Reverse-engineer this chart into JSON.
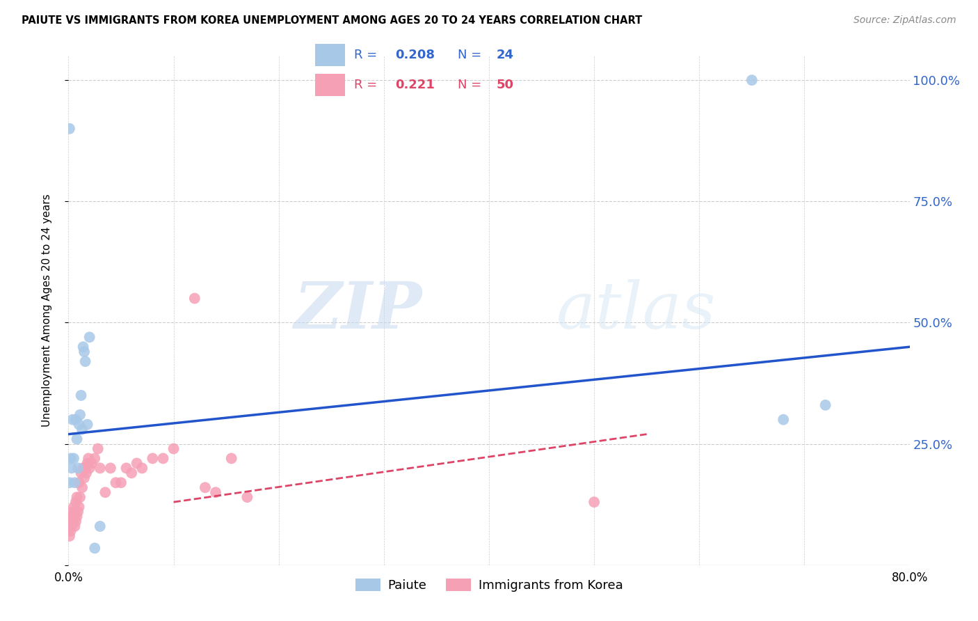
{
  "title": "PAIUTE VS IMMIGRANTS FROM KOREA UNEMPLOYMENT AMONG AGES 20 TO 24 YEARS CORRELATION CHART",
  "source": "Source: ZipAtlas.com",
  "ylabel": "Unemployment Among Ages 20 to 24 years",
  "y_ticks": [
    0.0,
    0.25,
    0.5,
    0.75,
    1.0
  ],
  "y_tick_labels": [
    "",
    "25.0%",
    "50.0%",
    "75.0%",
    "100.0%"
  ],
  "x_min": 0.0,
  "x_max": 0.8,
  "y_min": 0.0,
  "y_max": 1.05,
  "paiute_color": "#a8c8e8",
  "immigrants_color": "#f5a0b5",
  "paiute_line_color": "#2255cc",
  "immigrants_line_color": "#dd4466",
  "legend_R_paiute": "0.208",
  "legend_N_paiute": "24",
  "legend_R_immigrants": "0.221",
  "legend_N_immigrants": "50",
  "watermark_zip": "ZIP",
  "watermark_atlas": "atlas",
  "paiute_x": [
    0.001,
    0.001,
    0.002,
    0.003,
    0.004,
    0.005,
    0.006,
    0.007,
    0.008,
    0.009,
    0.01,
    0.011,
    0.012,
    0.013,
    0.014,
    0.015,
    0.016,
    0.018,
    0.02,
    0.025,
    0.03,
    0.65,
    0.68,
    0.72
  ],
  "paiute_y": [
    0.9,
    0.17,
    0.22,
    0.2,
    0.3,
    0.22,
    0.17,
    0.3,
    0.26,
    0.2,
    0.29,
    0.31,
    0.35,
    0.28,
    0.45,
    0.44,
    0.42,
    0.29,
    0.47,
    0.035,
    0.08,
    1.0,
    0.3,
    0.33
  ],
  "immigrants_x": [
    0.001,
    0.001,
    0.002,
    0.002,
    0.003,
    0.003,
    0.004,
    0.004,
    0.005,
    0.005,
    0.006,
    0.006,
    0.007,
    0.007,
    0.008,
    0.008,
    0.009,
    0.01,
    0.01,
    0.011,
    0.012,
    0.013,
    0.014,
    0.015,
    0.016,
    0.017,
    0.018,
    0.019,
    0.02,
    0.022,
    0.025,
    0.028,
    0.03,
    0.035,
    0.04,
    0.045,
    0.05,
    0.055,
    0.06,
    0.065,
    0.07,
    0.08,
    0.09,
    0.1,
    0.12,
    0.13,
    0.14,
    0.155,
    0.17,
    0.5
  ],
  "immigrants_y": [
    0.08,
    0.06,
    0.09,
    0.07,
    0.1,
    0.08,
    0.11,
    0.09,
    0.1,
    0.12,
    0.11,
    0.08,
    0.09,
    0.13,
    0.1,
    0.14,
    0.11,
    0.12,
    0.17,
    0.14,
    0.19,
    0.16,
    0.2,
    0.18,
    0.2,
    0.19,
    0.21,
    0.22,
    0.2,
    0.21,
    0.22,
    0.24,
    0.2,
    0.15,
    0.2,
    0.17,
    0.17,
    0.2,
    0.19,
    0.21,
    0.2,
    0.22,
    0.22,
    0.24,
    0.55,
    0.16,
    0.15,
    0.22,
    0.14,
    0.13
  ],
  "paiute_trend_x": [
    0.0,
    0.8
  ],
  "paiute_trend_y": [
    0.27,
    0.45
  ],
  "immigrants_trend_x": [
    0.1,
    0.55
  ],
  "immigrants_trend_y": [
    0.13,
    0.27
  ]
}
